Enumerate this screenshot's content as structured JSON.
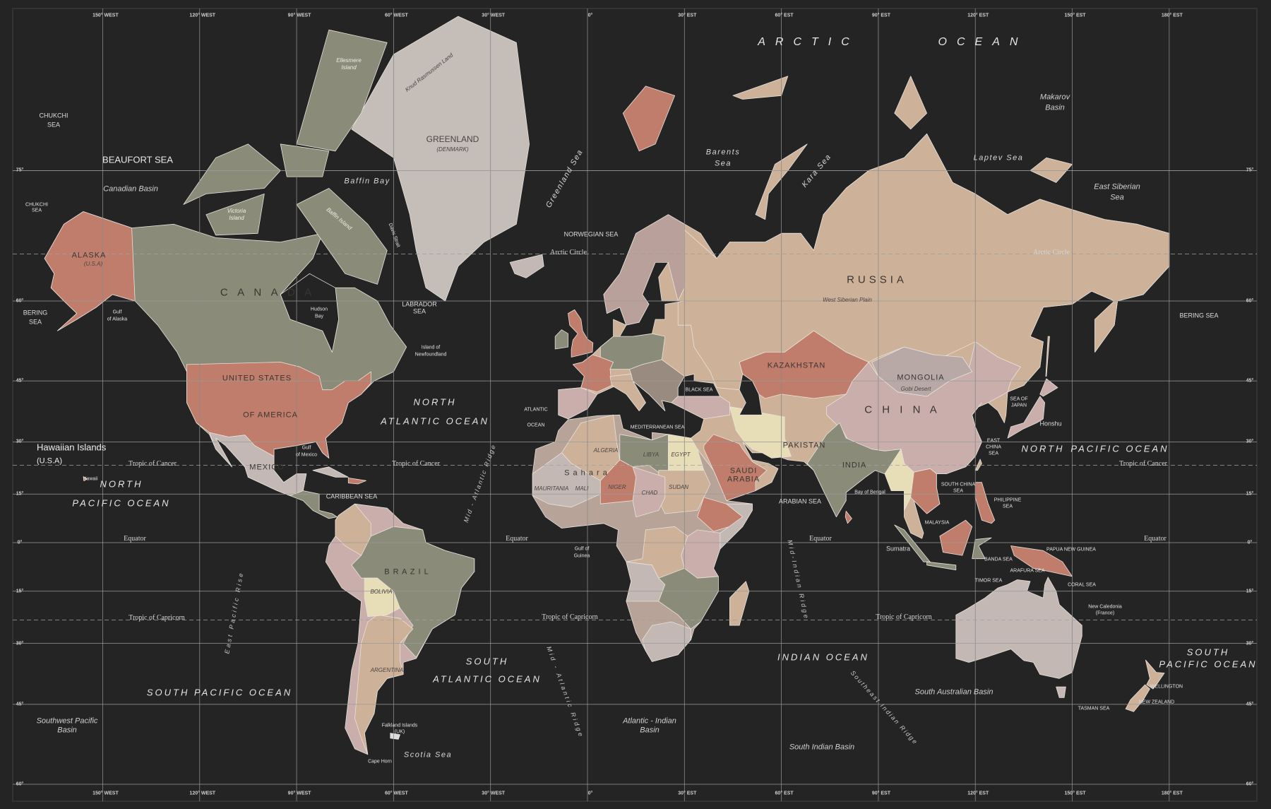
{
  "colors": {
    "ocean": "#242424",
    "grid": "#8a8a8a",
    "land_olive": "#8a8b78",
    "land_terracotta": "#c07d6b",
    "land_tan": "#cdb198",
    "land_rose": "#c9aeab",
    "land_grey": "#c3b8b3",
    "land_cream": "#e7ddb7",
    "greenland": "#c4bdb8"
  },
  "longitude_labels": [
    "150° WEST",
    "120° WEST",
    "90° WEST",
    "60° WEST",
    "30° WEST",
    "0°",
    "30° EST",
    "60° EST",
    "90° EST",
    "120° EST",
    "150° EST",
    "180° EST"
  ],
  "latitude_labels": [
    "75°",
    "60°",
    "45°",
    "30°",
    "15°",
    "0°",
    "15°",
    "30°",
    "45°",
    "60°"
  ],
  "labels": {
    "arctic": "ARCTIC",
    "arctic_ocean": "OCEAN",
    "north_atlantic_1": "NORTH",
    "north_atlantic_2": "ATLANTIC OCEAN",
    "north_pacific_w1": "NORTH",
    "north_pacific_w2": "PACIFIC OCEAN",
    "north_pacific_e1": "NORTH",
    "north_pacific_e2": "PACIFIC OCEAN",
    "south_atlantic_1": "SOUTH",
    "south_atlantic_2": "ATLANTIC OCEAN",
    "south_pacific_w": "SOUTH PACIFIC OCEAN",
    "south_pacific_e1": "SOUTH",
    "south_pacific_e2": "PACIFIC OCEAN",
    "indian_ocean": "INDIAN OCEAN",
    "hawaii": "Hawaiian Islands",
    "hawaii_sub": "(U.S.A)",
    "chukchi_1": "CHUKCHI",
    "chukchi_2": "SEA",
    "chukchi_s1": "CHUKCHI",
    "chukchi_s2": "SEA",
    "beaufort": "BEAUFORT SEA",
    "canadian_basin": "Canadian Basin",
    "bering_w1": "BERING",
    "bering_w2": "SEA",
    "bering_e": "BERING SEA",
    "gulf_alaska_1": "Gulf",
    "gulf_alaska_2": "of Alaska",
    "alaska": "ALASKA",
    "alaska_sub": "(U.S.A)",
    "canada": "C A N A D A",
    "usa_1": "UNITED STATES",
    "usa_2": "OF AMERICA",
    "mexico": "MEXICO",
    "gulf_mexico_1": "Gulf",
    "gulf_mexico_2": "of Mexico",
    "caribbean": "CARIBBEAN SEA",
    "tropic_cancer_1": "Tropic of Cancer",
    "tropic_cancer_2": "Tropic of Cancer",
    "tropic_cancer_3": "Tropic of Cancer",
    "equator_1": "Equator",
    "equator_2": "Equator",
    "equator_3": "Equator",
    "equator_4": "Equator",
    "tropic_cap_1": "Tropic of Capricorn",
    "tropic_cap_2": "Tropic of Capricorn",
    "tropic_cap_3": "Tropic of Capricorn",
    "arctic_circle_1": "Arctic Circle",
    "arctic_circle_2": "Arctic Circle",
    "greenland": "GREENLAND",
    "greenland_sub": "(DENMARK)",
    "knud": "Knud Rasmussen Land",
    "ellesmere_1": "Ellesmere",
    "ellesmere_2": "Island",
    "baffin_bay": "Baffin Bay",
    "baffin_island": "Baffin Island",
    "victoria_1": "Victoria",
    "victoria_2": "Island",
    "davis": "Davis Strait",
    "greenland_sea": "Greenland Sea",
    "norwegian": "NORWEGIAN SEA",
    "labrador_1": "LABRADOR",
    "labrador_2": "SEA",
    "hudson_1": "Hudson",
    "hudson_2": "Bay",
    "newfoundland_1": "Island of",
    "newfoundland_2": "Newfoundland",
    "barents_1": "Barents",
    "barents_2": "Sea",
    "kara": "Kara Sea",
    "laptev": "Laptev  Sea",
    "makarov_1": "Makarov",
    "makarov_2": "Basin",
    "east_siberian_1": "East Siberian",
    "east_siberian_2": "Sea",
    "russia": "RUSSIA",
    "west_siberian": "West Siberian Plain",
    "kazakhstan": "KAZAKHSTAN",
    "mongolia": "MONGOLIA",
    "gobi": "Gobi Desert",
    "china": "C H I N A",
    "india": "INDIA",
    "pakistan": "PAKISTAN",
    "saudi_1": "SAUDI",
    "saudi_2": "ARABIA",
    "arabian_sea": "ARABIAN SEA",
    "bay_bengal": "Bay of Bengal",
    "south_china_1": "SOUTH CHINA",
    "south_china_2": "SEA",
    "east_china_1": "EAST",
    "east_china_2": "CHINA",
    "east_china_3": "SEA",
    "philippine_1": "PHILIPPINE",
    "philippine_2": "SEA",
    "sea_japan_1": "SEA OF",
    "sea_japan_2": "JAPAN",
    "honshu": "Honshu",
    "malaysia": "MALAYSIA",
    "sumatra": "Sumatra",
    "banda": "BANDA SEA",
    "arafura": "ARAFURA SEA",
    "timor": "TIMOR SEA",
    "png": "PAPUA NEW GUINEA",
    "coral": "CORAL SEA",
    "new_caledonia_1": "New Caledonia",
    "new_caledonia_2": "(France)",
    "nz": "NEW ZEALAND",
    "wellington": "WELLINGTON",
    "tasman": "TASMAN SEA",
    "sa_basin": "South Australian Basin",
    "si_basin": "South Indian Basin",
    "se_ridge": "Southeast Indian Ridge",
    "mid_indian": "Mid-Indian Ridge",
    "ai_basin_1": "Atlantic - Indian",
    "ai_basin_2": "Basin",
    "mid_atl_n": "Mid - Atlantic Ridge",
    "mid_atl_s": "Mid - Atlantic Ridge",
    "east_pacific": "East Pacific Rise",
    "swp_basin_1": "Southwest Pacific",
    "swp_basin_2": "Basin",
    "scotia": "Scotia Sea",
    "falkland_1": "Falkland Islands",
    "falkland_2": "(UK)",
    "cape_horn": "Cape Horn",
    "brazil": "B R A Z I L",
    "argentina": "ARGENTINA",
    "bolivia": "BOLIVIA",
    "gulf_guinea_1": "Gulf of",
    "gulf_guinea_2": "Guinea",
    "algeria": "ALGERIA",
    "sahara": "S a h a r a",
    "libya": "LIBYA",
    "egypt": "EGYPT",
    "sudan": "SUDAN",
    "chad": "CHAD",
    "mali": "MALI",
    "niger": "NIGER",
    "mauritania": "MAURITANIA",
    "mediterranean": "MEDITERRANEAN SEA",
    "black_sea": "BLACK SEA",
    "atlantic_small": "ATLANTIC",
    "ocean_small": "OCEAN",
    "hawaii_dot": "Hawaii"
  }
}
